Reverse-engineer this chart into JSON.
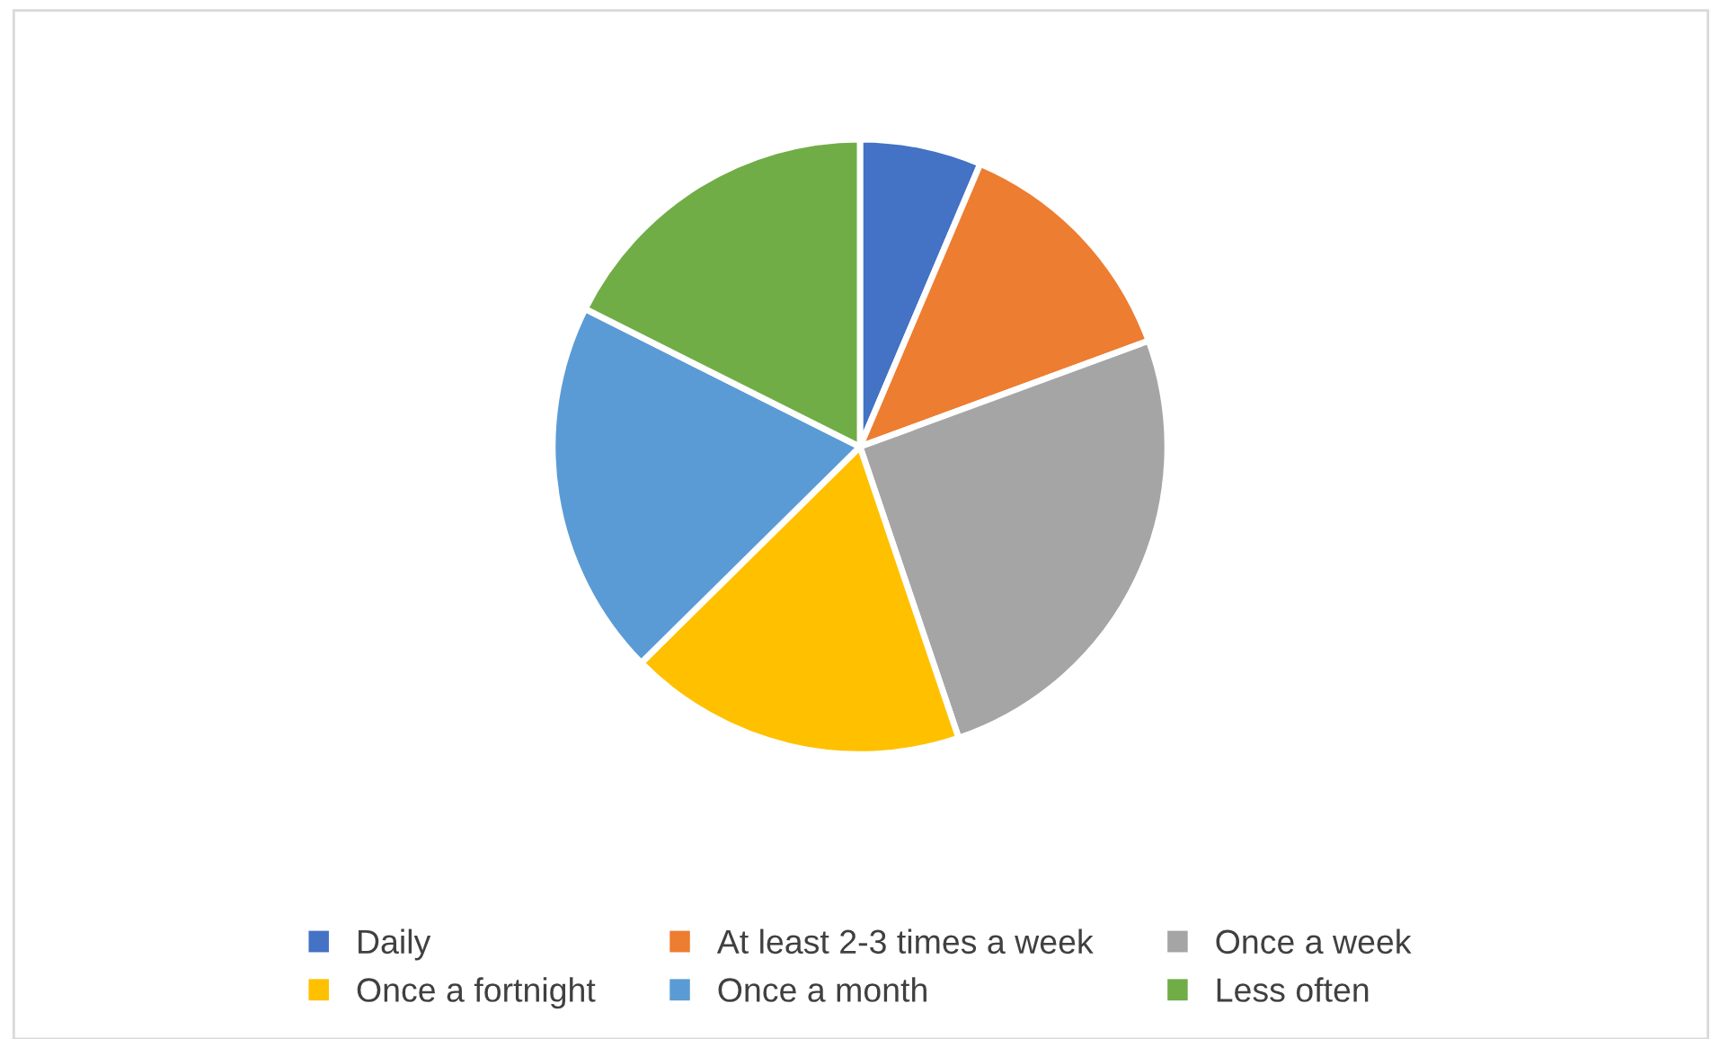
{
  "chart_data": {
    "type": "pie",
    "categories": [
      "Daily",
      "At least 2-3 times a week",
      "Once a week",
      "Once a fortnight",
      "Once a month",
      "Less often"
    ],
    "values": [
      6.4,
      13.0,
      25.4,
      17.8,
      19.8,
      17.6
    ],
    "colors": [
      "#4472c4",
      "#ed7d31",
      "#a5a5a5",
      "#ffc000",
      "#5b9bd5",
      "#70ad47"
    ],
    "legend": "bottom"
  }
}
